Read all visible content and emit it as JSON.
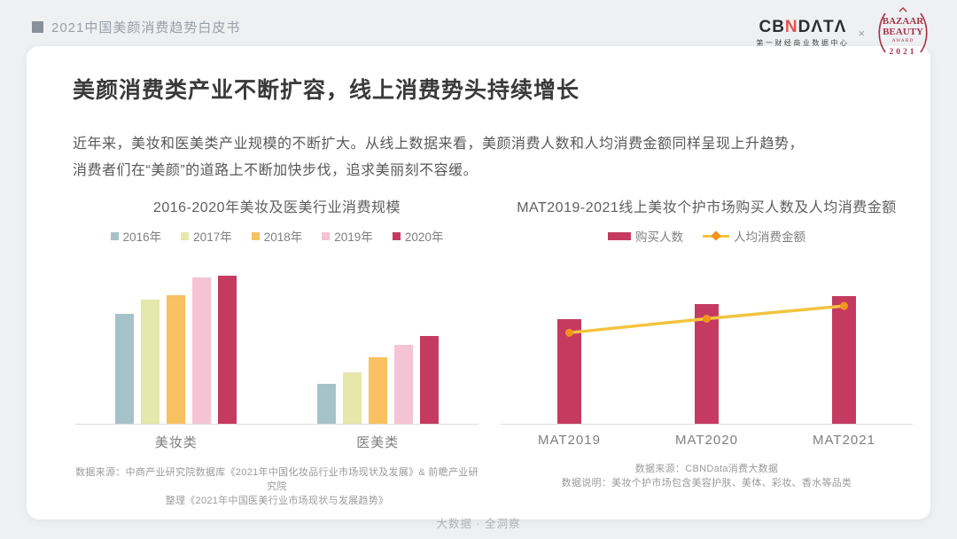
{
  "header": {
    "title": "2021中国美颜消费趋势白皮书"
  },
  "logos": {
    "cbn_cb": "CB",
    "cbn_n": "N",
    "cbn_data": "DΛTΛ",
    "cbn_sub": "第一财经商业数据中心",
    "separator": "×",
    "bazaar_line1": "BAZAAR",
    "bazaar_line2": "BEAUTY",
    "bazaar_award": "AWARD",
    "bazaar_year": "2021",
    "badge_color": "#a8344c"
  },
  "headline": "美颜消费类产业不断扩容，线上消费势头持续增长",
  "body": {
    "line1": "近年来，美妆和医美类产业规模的不断扩大。从线上数据来看，美颜消费人数和人均消费金额同样呈现上升趋势，",
    "line2": "消费者们在“美颜”的道路上不断加快步伐，追求美丽刻不容缓。"
  },
  "chart_data": [
    {
      "type": "bar",
      "title": "2016-2020年美妆及医美行业消费规模",
      "categories": [
        "美妆类",
        "医美类"
      ],
      "series": [
        {
          "name": "2016年",
          "color": "#a6c2c9",
          "values": [
            74,
            27
          ]
        },
        {
          "name": "2017年",
          "color": "#e5e7ab",
          "values": [
            84,
            35
          ]
        },
        {
          "name": "2018年",
          "color": "#f8c161",
          "values": [
            87,
            45
          ]
        },
        {
          "name": "2019年",
          "color": "#f5c4d4",
          "values": [
            99,
            53
          ]
        },
        {
          "name": "2020年",
          "color": "#c53b60",
          "values": [
            100,
            59
          ]
        }
      ],
      "ylim": [
        0,
        110
      ],
      "grid": false,
      "legend_position": "top",
      "source_line1": "数据来源：中商产业研究院数据库《2021年中国化妆品行业市场现状及发展》& 前瞻产业研究院",
      "source_line2": "整理《2021年中国医美行业市场现状与发展趋势》"
    },
    {
      "type": "bar",
      "title": "MAT2019-2021线上美妆个护市场购买人数及人均消费金额",
      "categories": [
        "MAT2019",
        "MAT2020",
        "MAT2021"
      ],
      "series": [
        {
          "name": "购买人数",
          "kind": "bar",
          "color": "#c53b60",
          "values": [
            82,
            94,
            100
          ]
        },
        {
          "name": "人均消费金额",
          "kind": "line",
          "color": "#f3c440",
          "marker_color": "#f2941e",
          "values": [
            72,
            83,
            93
          ]
        }
      ],
      "ylim": [
        0,
        110
      ],
      "grid": false,
      "legend_position": "top",
      "source_line1": "数据来源：CBNData消费大数据",
      "source_line2": "数据说明：美妆个护市场包含美容护肤、美体、彩妆、香水等品类"
    }
  ],
  "footer": "大数据 · 全洞察"
}
